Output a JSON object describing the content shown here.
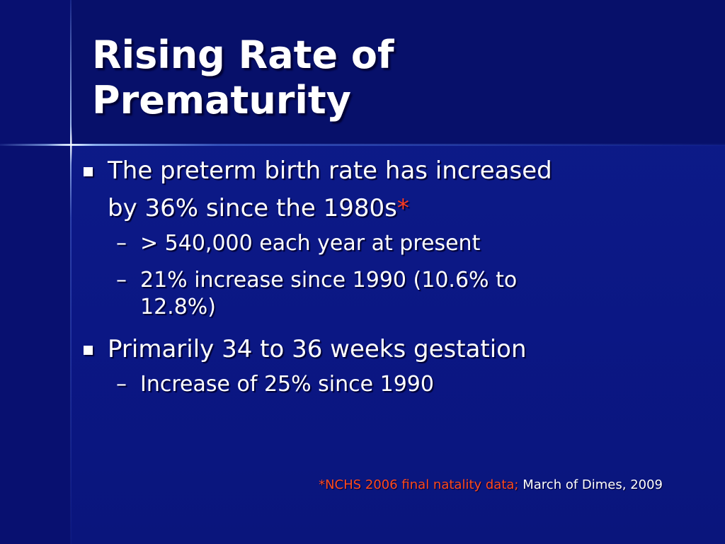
{
  "title": {
    "line1": "Rising Rate of",
    "line2": "Prematurity"
  },
  "bullets": [
    {
      "text_line1": "The preterm birth rate has increased",
      "text_line2": "by 36% since the 1980s",
      "marker": "*",
      "subs": [
        {
          "dash": "–",
          "text": "> 540,000 each year at present"
        },
        {
          "dash": "–",
          "text_line1": "21% increase since 1990 (10.6% to",
          "text_line2": "12.8%)"
        }
      ]
    },
    {
      "text": "Primarily 34 to 36 weeks gestation",
      "subs": [
        {
          "dash": "–",
          "text": "Increase of 25% since 1990"
        }
      ]
    }
  ],
  "footnote": {
    "red": "*NCHS 2006 final natality data;",
    "white": "March of Dimes, 2009"
  },
  "colors": {
    "background": "#0e1c8a",
    "text": "#ffffff",
    "accent": "#ff3b1f"
  }
}
